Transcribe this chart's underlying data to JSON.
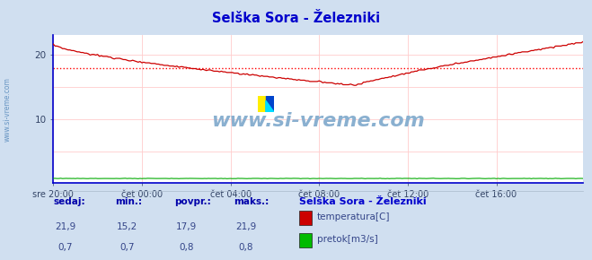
{
  "title": "Selška Sora - Železniki",
  "title_color": "#0000cc",
  "bg_color": "#d0dff0",
  "plot_bg_color": "#ffffff",
  "grid_color": "#ffcccc",
  "x_tick_labels": [
    "sre 20:00",
    "čet 00:00",
    "čet 04:00",
    "čet 08:00",
    "čet 12:00",
    "čet 16:00"
  ],
  "x_tick_positions": [
    0,
    48,
    96,
    144,
    192,
    240
  ],
  "y_ticks": [
    10,
    20
  ],
  "ylim": [
    0,
    23
  ],
  "xlim": [
    0,
    287
  ],
  "temp_color": "#cc0000",
  "flow_color": "#00aa00",
  "avg_line_color": "#ff0000",
  "avg_line_value": 17.9,
  "watermark": "www.si-vreme.com",
  "watermark_color": "#8ab0d0",
  "legend_title": "Selška Sora - Železniki",
  "footer_labels": [
    "sedaj:",
    "min.:",
    "povpr.:",
    "maks.:"
  ],
  "footer_temp": [
    "21,9",
    "15,2",
    "17,9",
    "21,9"
  ],
  "footer_flow": [
    "0,7",
    "0,7",
    "0,8",
    "0,8"
  ],
  "legend_items": [
    [
      "temperatura[C]",
      "#cc0000"
    ],
    [
      "pretok[m3/s]",
      "#00bb00"
    ]
  ],
  "sidebar_text": "www.si-vreme.com",
  "sidebar_color": "#5588bb",
  "axis_color": "#0000cc",
  "arrow_color": "#cc0000"
}
